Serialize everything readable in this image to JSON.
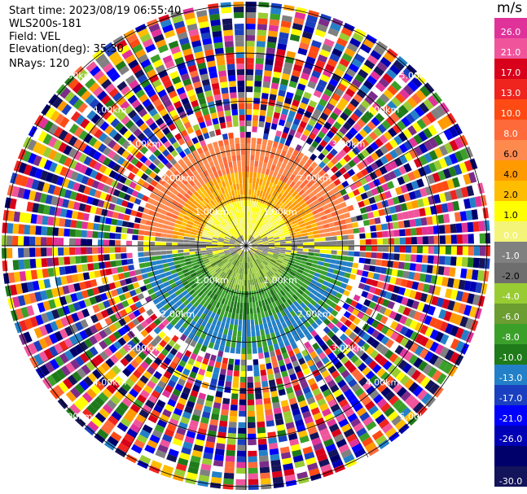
{
  "header": {
    "start_time": "Start time: 2023/08/19 06:55:40",
    "instrument": "WLS200s-181",
    "field": "Field: VEL",
    "elevation": "Elevation(deg): 35.30",
    "nrays": "NRays: 120"
  },
  "colorbar": {
    "unit": "m/s",
    "labels": [
      "26.0",
      "21.0",
      "17.0",
      "13.0",
      "10.0",
      "8.0",
      "6.0",
      "4.0",
      "2.0",
      "1.0",
      "0.0",
      "-1.0",
      "-2.0",
      "-4.0",
      "-6.0",
      "-8.0",
      "-10.0",
      "-13.0",
      "-17.0",
      "-21.0",
      "-26.0",
      "-30.0"
    ],
    "colors": [
      "#e0339a",
      "#f0559c",
      "#d8001a",
      "#f0241f",
      "#ff4a14",
      "#ff6a3a",
      "#ff8a4e",
      "#ff9a00",
      "#ffbd00",
      "#ffff00",
      "#f4f478",
      "#808080",
      "#6e6e6e",
      "#99cc33",
      "#6b9d31",
      "#3aa02a",
      "#1f7a1a",
      "#2380c8",
      "#1a3fbf",
      "#0000ff",
      "#0000b4",
      "#00006a",
      "#14145a"
    ]
  },
  "rings": [
    "1.00km",
    "2.00km",
    "3.00km",
    "4.00km",
    "5.00km"
  ],
  "chart_data": {
    "type": "heatmap",
    "projection": "polar PPI",
    "field": "VEL",
    "units": "m/s",
    "elevation_deg": 35.3,
    "n_rays": 120,
    "range_rings_km": [
      1,
      2,
      3,
      4,
      5
    ],
    "color_range": [
      -30,
      26
    ]
  }
}
